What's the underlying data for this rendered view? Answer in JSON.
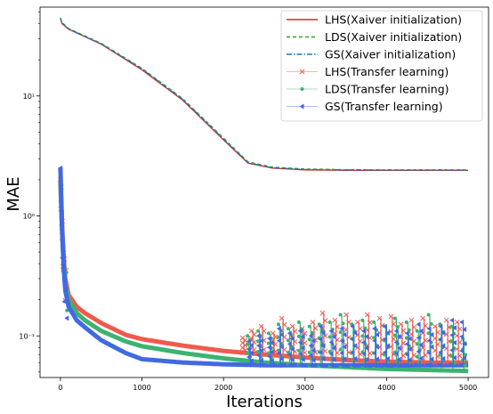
{
  "chart_data": {
    "type": "line",
    "xlabel": "Iterations",
    "ylabel": "MAE",
    "yscale": "log",
    "xlim": [
      -250,
      5250
    ],
    "ylim": [
      0.045,
      55
    ],
    "xticks": [
      0,
      1000,
      2000,
      3000,
      4000,
      5000
    ],
    "xtick_labels": [
      "0",
      "1000",
      "2000",
      "3000",
      "4000",
      "5000"
    ],
    "yticks": [
      0.1,
      1,
      10
    ],
    "ytick_labels": [
      "10⁻¹",
      "10⁰",
      "10¹"
    ],
    "grid": false,
    "legend_position": "top-right",
    "series": [
      {
        "name": "LHS(Xaiver initialization)",
        "color": "#d62728",
        "style": "solid",
        "x": [
          0,
          20,
          100,
          500,
          1000,
          1500,
          2000,
          2300,
          2600,
          3000,
          3500,
          4000,
          4500,
          5000
        ],
        "y": [
          44,
          40,
          36,
          27,
          16.5,
          9.2,
          4.3,
          2.75,
          2.5,
          2.42,
          2.4,
          2.4,
          2.4,
          2.4
        ]
      },
      {
        "name": "LDS(Xaiver initialization)",
        "color": "#2ca02c",
        "style": "dashed",
        "x": [
          0,
          20,
          100,
          500,
          1000,
          1500,
          2000,
          2300,
          2600,
          3000,
          3500,
          4000,
          4500,
          5000
        ],
        "y": [
          45,
          41,
          36.5,
          27.5,
          17,
          9.5,
          4.45,
          2.82,
          2.55,
          2.46,
          2.43,
          2.42,
          2.42,
          2.42
        ]
      },
      {
        "name": "GS(Xaiver initialization)",
        "color": "#1f77b4",
        "style": "dashdot",
        "x": [
          0,
          20,
          100,
          500,
          1000,
          1500,
          2000,
          2300,
          2600,
          3000,
          3500,
          4000,
          4500,
          5000
        ],
        "y": [
          44.5,
          40.5,
          36.2,
          27.2,
          16.8,
          9.35,
          4.38,
          2.78,
          2.52,
          2.44,
          2.42,
          2.41,
          2.41,
          2.41
        ]
      },
      {
        "name": "LHS(Transfer learning)",
        "color": "#f05a4e",
        "marker": "x",
        "x": [
          0,
          30,
          60,
          100,
          200,
          300,
          500,
          800,
          1000,
          1500,
          2000,
          2500,
          3000,
          3500,
          4000,
          4500,
          5000
        ],
        "y": [
          2.0,
          0.55,
          0.3,
          0.22,
          0.175,
          0.155,
          0.128,
          0.102,
          0.094,
          0.083,
          0.075,
          0.07,
          0.066,
          0.063,
          0.061,
          0.06,
          0.06
        ]
      },
      {
        "name": "LDS(Transfer learning)",
        "color": "#3cb371",
        "marker": "circle",
        "x": [
          0,
          30,
          60,
          100,
          200,
          300,
          500,
          800,
          1000,
          1500,
          2000,
          2500,
          3000,
          3500,
          4000,
          4500,
          5000
        ],
        "y": [
          1.9,
          0.5,
          0.27,
          0.2,
          0.155,
          0.135,
          0.11,
          0.09,
          0.082,
          0.072,
          0.065,
          0.06,
          0.057,
          0.055,
          0.053,
          0.052,
          0.051
        ]
      },
      {
        "name": "GS(Transfer learning)",
        "color": "#4169e1",
        "marker": "triangle-left",
        "x": [
          0,
          30,
          60,
          100,
          200,
          300,
          500,
          800,
          1000,
          1500,
          2000,
          2500,
          3000,
          3500,
          4000,
          4500,
          5000
        ],
        "y": [
          2.5,
          0.45,
          0.24,
          0.175,
          0.135,
          0.118,
          0.092,
          0.072,
          0.064,
          0.06,
          0.058,
          0.057,
          0.057,
          0.057,
          0.057,
          0.057,
          0.057
        ]
      }
    ],
    "spikes": [
      {
        "series": 3,
        "x": [
          2250,
          2360,
          2480,
          2620,
          2730,
          2860,
          2980,
          3110,
          3230,
          3380,
          3520,
          3660,
          3780,
          3930,
          4070,
          4190,
          4320,
          4460,
          4610,
          4750,
          4880
        ],
        "y": [
          0.096,
          0.11,
          0.12,
          0.105,
          0.14,
          0.12,
          0.115,
          0.13,
          0.155,
          0.135,
          0.15,
          0.13,
          0.15,
          0.14,
          0.145,
          0.125,
          0.135,
          0.14,
          0.12,
          0.135,
          0.13
        ]
      },
      {
        "series": 4,
        "x": [
          2310,
          2440,
          2570,
          2690,
          2810,
          2940,
          3070,
          3190,
          3320,
          3450,
          3590,
          3720,
          3860,
          3990,
          4120,
          4260,
          4390,
          4530,
          4670,
          4810,
          4950
        ],
        "y": [
          0.1,
          0.11,
          0.105,
          0.125,
          0.115,
          0.13,
          0.12,
          0.125,
          0.13,
          0.15,
          0.125,
          0.135,
          0.13,
          0.12,
          0.14,
          0.13,
          0.11,
          0.15,
          0.125,
          0.12,
          0.095
        ]
      },
      {
        "series": 5,
        "x": [
          2330,
          2450,
          2580,
          2700,
          2830,
          2960,
          3090,
          3210,
          3340,
          3470,
          3600,
          3740,
          3870,
          4000,
          4140,
          4270,
          4410,
          4540,
          4680,
          4820,
          4940
        ],
        "y": [
          0.09,
          0.1,
          0.095,
          0.115,
          0.105,
          0.11,
          0.1,
          0.12,
          0.11,
          0.115,
          0.12,
          0.11,
          0.115,
          0.12,
          0.11,
          0.105,
          0.125,
          0.115,
          0.12,
          0.135,
          0.13
        ]
      }
    ]
  }
}
